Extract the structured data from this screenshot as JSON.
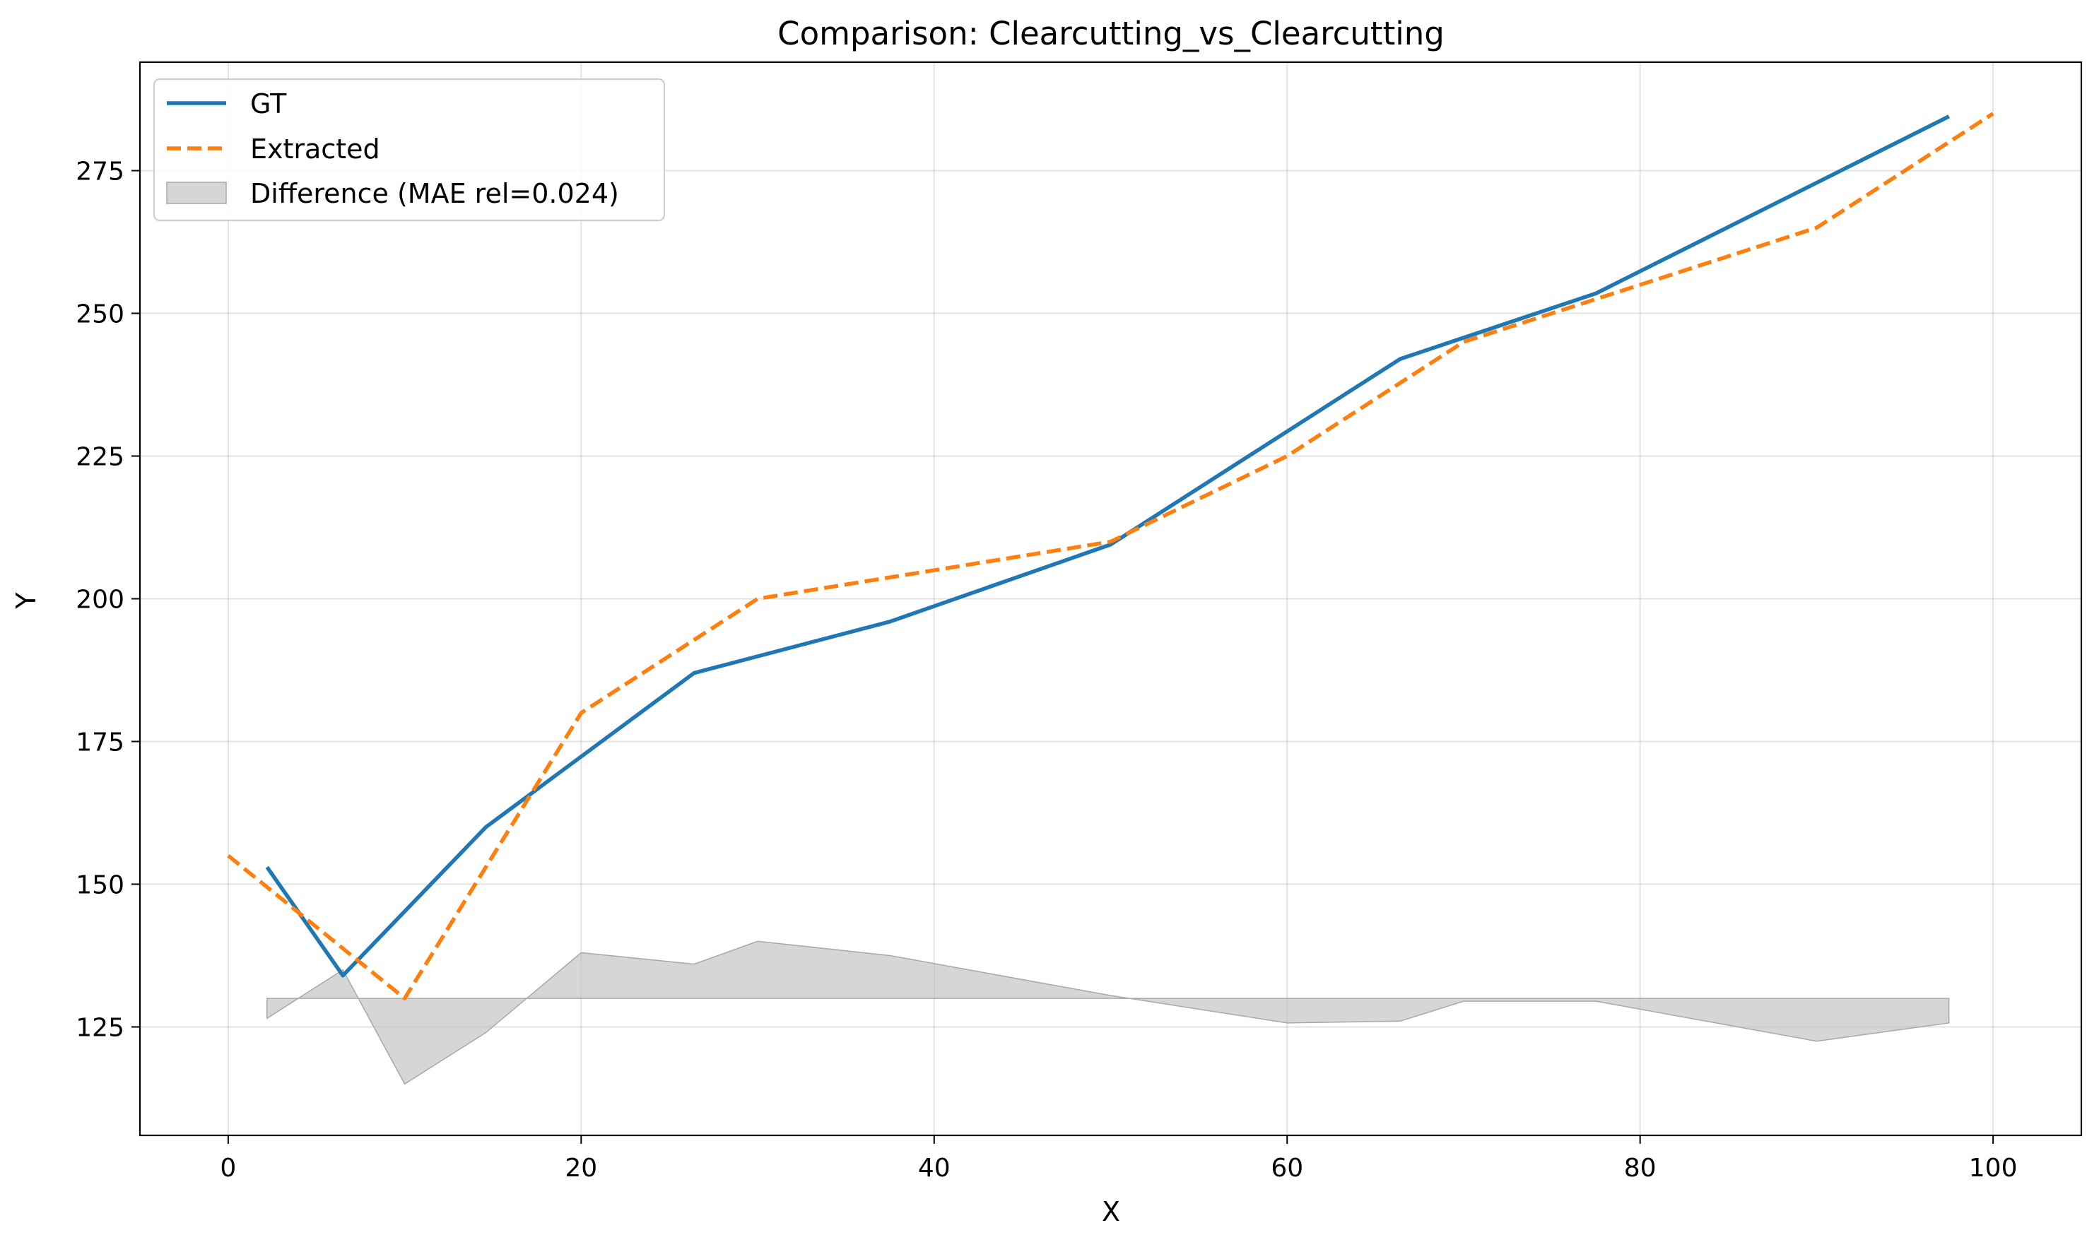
{
  "chart_data": {
    "type": "line",
    "title": "Comparison: Clearcutting_vs_Clearcutting",
    "xlabel": "X",
    "ylabel": "Y",
    "xlim": [
      -5,
      105
    ],
    "ylim": [
      106,
      294
    ],
    "xticks": [
      0,
      20,
      40,
      60,
      80,
      100
    ],
    "yticks": [
      125,
      150,
      175,
      200,
      225,
      250,
      275
    ],
    "grid": true,
    "legend_position": "upper-left",
    "series": [
      {
        "name": "GT",
        "style": "solid",
        "color": "#1f77b4",
        "x": [
          2.2,
          6.5,
          14.6,
          26.4,
          37.5,
          50.0,
          66.4,
          77.5,
          97.5
        ],
        "y": [
          153.0,
          134.0,
          160.0,
          187.0,
          196.0,
          209.5,
          242.0,
          253.5,
          284.5
        ]
      },
      {
        "name": "Extracted",
        "style": "dashed",
        "color": "#ff7f0e",
        "x": [
          0,
          10,
          20,
          30,
          50,
          60,
          70,
          90,
          100
        ],
        "y": [
          155,
          130,
          180,
          200,
          210,
          225,
          245,
          265,
          285
        ]
      }
    ],
    "difference": {
      "name": "Difference (MAE rel=0.024)",
      "color": "#c0c0c0",
      "baseline": 130,
      "x": [
        2.2,
        6.5,
        10.0,
        14.6,
        20.0,
        26.4,
        30.0,
        37.5,
        50.0,
        60.0,
        66.4,
        70.0,
        77.5,
        90.0,
        97.5
      ],
      "y": [
        126.5,
        135.0,
        115.0,
        124.0,
        138.0,
        136.0,
        140.0,
        137.5,
        130.5,
        125.7,
        126.0,
        129.5,
        129.5,
        122.5,
        125.7
      ]
    }
  }
}
